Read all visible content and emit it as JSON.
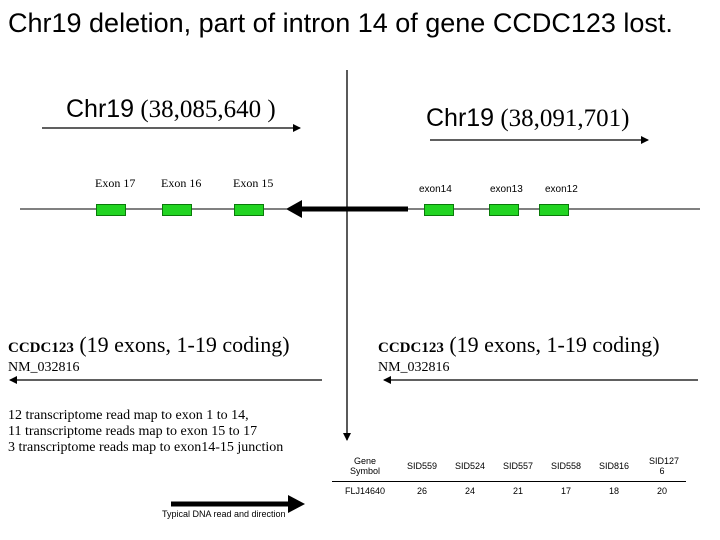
{
  "title": "Chr19 deletion, part of intron 14 of gene CCDC123 lost.",
  "left_breakpoint": {
    "prefix": "Chr19",
    "coord": "(38,085,640 )"
  },
  "right_breakpoint": {
    "prefix": "Chr19",
    "coord": "(38,091,701)"
  },
  "exons_left": [
    "Exon 17",
    "Exon 16",
    "Exon 15"
  ],
  "exons_right": [
    "exon14",
    "exon13",
    "exon12"
  ],
  "gene_left": {
    "name": "CCDC123",
    "detail": "(19 exons, 1-19 coding)",
    "accession": "NM_032816"
  },
  "gene_right": {
    "name": "CCDC123",
    "detail": "(19 exons, 1-19 coding)",
    "accession": "NM_032816"
  },
  "notes": [
    "12 transcriptome read map to exon 1 to 14,",
    "11 transcriptome reads map to exon 15 to 17",
    "3 transcriptome reads map to exon14-15 junction"
  ],
  "legend_caption": "Typical DNA read and direction",
  "table": {
    "header": [
      "Gene Symbol",
      "SID559",
      "SID524",
      "SID557",
      "SID558",
      "SID816",
      "SID127 6"
    ],
    "row": [
      "FLJ14640",
      "26",
      "24",
      "21",
      "17",
      "18",
      "20"
    ]
  },
  "colors": {
    "exon_fill": "#22d422",
    "line": "#000000"
  }
}
